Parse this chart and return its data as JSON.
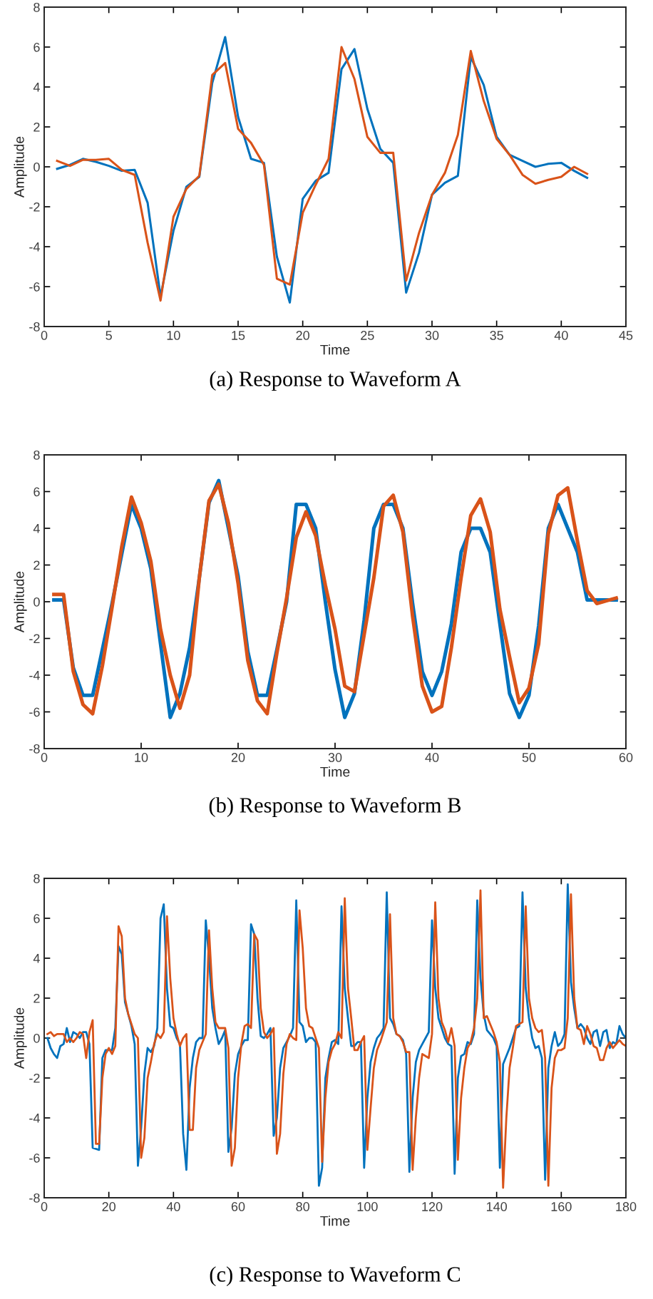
{
  "chart_data": [
    {
      "type": "line",
      "title": "(a) Response to Waveform A",
      "xlabel": "Time",
      "ylabel": "Amplitude",
      "xlim": [
        0,
        45
      ],
      "ylim": [
        -8,
        8
      ],
      "xticks": [
        0,
        5,
        10,
        15,
        20,
        25,
        30,
        35,
        40,
        45
      ],
      "yticks": [
        -8,
        -6,
        -4,
        -2,
        0,
        2,
        4,
        6,
        8
      ],
      "grid": false,
      "marker": "none",
      "line_style": "solid",
      "x": [
        1,
        2,
        3,
        4,
        5,
        6,
        7,
        8,
        9,
        10,
        11,
        12,
        13,
        14,
        15,
        16,
        17,
        18,
        19,
        20,
        21,
        22,
        23,
        24,
        25,
        26,
        27,
        28,
        29,
        30,
        31,
        32,
        33,
        34,
        35,
        36,
        37,
        38,
        39,
        40,
        41,
        42
      ],
      "series": [
        {
          "color": "#0072bd",
          "values": [
            -0.1,
            0.1,
            0.4,
            0.25,
            0.05,
            -0.2,
            -0.15,
            -1.8,
            -6.5,
            -3.2,
            -1.0,
            -0.5,
            4.2,
            6.5,
            2.5,
            0.4,
            0.2,
            -4.5,
            -6.8,
            -1.6,
            -0.7,
            -0.3,
            4.9,
            5.9,
            2.9,
            0.9,
            0.2,
            -6.3,
            -4.3,
            -1.4,
            -0.8,
            -0.45,
            5.5,
            4.1,
            1.5,
            0.6,
            0.3,
            0.0,
            0.15,
            0.2,
            -0.2,
            -0.55
          ]
        },
        {
          "color": "#d95319",
          "values": [
            0.3,
            0.05,
            0.35,
            0.35,
            0.4,
            -0.15,
            -0.4,
            -3.8,
            -6.7,
            -2.5,
            -1.1,
            -0.45,
            4.6,
            5.2,
            1.9,
            1.2,
            0.1,
            -5.6,
            -5.9,
            -2.3,
            -0.9,
            0.4,
            6.0,
            4.4,
            1.5,
            0.7,
            0.7,
            -5.7,
            -3.3,
            -1.4,
            -0.3,
            1.6,
            5.8,
            3.3,
            1.4,
            0.6,
            -0.4,
            -0.85,
            -0.65,
            -0.5,
            0.0,
            -0.35
          ]
        }
      ]
    },
    {
      "type": "line",
      "title": "(b) Response to Waveform B",
      "xlabel": "Time",
      "ylabel": "Amplitude",
      "xlim": [
        0,
        60
      ],
      "ylim": [
        -8,
        8
      ],
      "xticks": [
        0,
        10,
        20,
        30,
        40,
        50,
        60
      ],
      "yticks": [
        -8,
        -6,
        -4,
        -2,
        0,
        2,
        4,
        6,
        8
      ],
      "grid": false,
      "marker": "none",
      "line_style": "solid",
      "x": [
        1,
        2,
        3,
        4,
        5,
        6,
        7,
        8,
        9,
        10,
        11,
        12,
        13,
        14,
        15,
        16,
        17,
        18,
        19,
        20,
        21,
        22,
        23,
        24,
        25,
        26,
        27,
        28,
        29,
        30,
        31,
        32,
        33,
        34,
        35,
        36,
        37,
        38,
        39,
        40,
        41,
        42,
        43,
        44,
        45,
        46,
        47,
        48,
        49,
        50,
        51,
        52,
        53,
        54,
        55,
        56,
        57,
        58,
        59
      ],
      "series": [
        {
          "color": "#0072bd",
          "values": [
            0.1,
            0.1,
            -3.6,
            -5.1,
            -5.1,
            -2.6,
            -0.1,
            2.6,
            5.3,
            4.0,
            1.8,
            -2.3,
            -6.3,
            -5.0,
            -2.5,
            1.3,
            5.4,
            6.6,
            4.0,
            1.4,
            -2.7,
            -5.1,
            -5.1,
            -2.6,
            0.0,
            5.3,
            5.3,
            4.0,
            0.0,
            -3.7,
            -6.3,
            -5.0,
            -1.0,
            4.0,
            5.3,
            5.3,
            4.0,
            -0.1,
            -3.8,
            -5.1,
            -3.8,
            -1.2,
            2.7,
            4.0,
            4.0,
            2.7,
            -1.2,
            -5.0,
            -6.3,
            -5.1,
            -1.3,
            4.0,
            5.3,
            4.0,
            2.7,
            0.1,
            0.1,
            0.1,
            0.1
          ]
        },
        {
          "color": "#d95319",
          "values": [
            0.4,
            0.4,
            -3.8,
            -5.6,
            -6.1,
            -3.5,
            -0.3,
            3.0,
            5.7,
            4.3,
            2.2,
            -1.5,
            -4.0,
            -5.8,
            -4.0,
            1.3,
            5.5,
            6.4,
            4.3,
            1.0,
            -3.2,
            -5.4,
            -6.1,
            -2.8,
            0.2,
            3.5,
            4.9,
            3.6,
            0.9,
            -1.5,
            -4.6,
            -4.9,
            -1.8,
            1.3,
            5.2,
            5.8,
            3.8,
            -0.8,
            -4.6,
            -6.0,
            -5.7,
            -2.5,
            1.3,
            4.7,
            5.6,
            3.8,
            -0.4,
            -3.0,
            -5.5,
            -4.7,
            -2.3,
            3.7,
            5.8,
            6.2,
            3.3,
            0.6,
            -0.1,
            0.05,
            0.2
          ]
        }
      ]
    },
    {
      "type": "line",
      "title": "(c) Response to Waveform C",
      "xlabel": "Time",
      "ylabel": "Amplitude",
      "xlim": [
        0,
        180
      ],
      "ylim": [
        -8,
        8
      ],
      "xticks": [
        0,
        20,
        40,
        60,
        80,
        100,
        120,
        140,
        160,
        180
      ],
      "yticks": [
        -8,
        -6,
        -4,
        -2,
        0,
        2,
        4,
        6,
        8
      ],
      "grid": false,
      "marker": "none",
      "line_style": "solid",
      "series": [
        {
          "color": "#0072bd",
          "x": [
            1,
            2,
            3,
            4,
            5,
            6,
            7,
            8,
            9,
            10,
            11,
            12,
            13,
            14,
            15,
            17,
            18,
            19,
            21,
            22,
            23,
            24,
            25,
            26,
            27,
            28,
            29,
            30,
            31,
            32,
            33,
            34,
            35,
            36,
            37,
            38,
            39,
            40,
            41,
            42,
            43,
            44,
            45,
            46,
            47,
            48,
            49,
            50,
            51,
            52,
            53,
            54,
            55,
            56,
            57,
            58,
            59,
            60,
            61,
            62,
            63,
            64,
            65,
            66,
            67,
            68,
            69,
            70,
            71,
            72,
            73,
            74,
            75,
            76,
            77,
            78,
            79,
            80,
            81,
            82,
            83,
            84,
            85,
            86,
            87,
            88,
            89,
            90,
            91,
            92,
            93,
            94,
            95,
            96,
            97,
            98,
            99,
            100,
            101,
            102,
            103,
            104,
            105,
            106,
            107,
            108,
            109,
            110,
            111,
            112,
            113,
            114,
            115,
            116,
            117,
            118,
            119,
            120,
            121,
            122,
            123,
            124,
            125,
            126,
            127,
            128,
            129,
            130,
            131,
            132,
            133,
            134,
            135,
            136,
            137,
            138,
            139,
            140,
            141,
            142,
            143,
            144,
            145,
            146,
            147,
            148,
            149,
            150,
            151,
            152,
            153,
            154,
            155,
            156,
            157,
            158,
            159,
            160,
            161,
            162,
            163,
            164,
            165,
            166,
            167,
            168,
            169,
            170,
            171,
            172,
            173,
            174,
            175,
            176,
            177,
            178,
            179,
            180
          ],
          "values": [
            0.0,
            -0.5,
            -0.8,
            -1.0,
            -0.4,
            -0.3,
            0.5,
            -0.2,
            0.3,
            0.2,
            0.0,
            0.3,
            0.3,
            -0.3,
            -5.5,
            -5.6,
            -1.0,
            -0.6,
            -0.6,
            0.5,
            4.6,
            4.2,
            1.8,
            1.2,
            0.6,
            -0.3,
            -6.4,
            -4.5,
            -1.8,
            -0.5,
            -0.7,
            -0.4,
            0.5,
            6.0,
            6.7,
            2.5,
            0.6,
            0.5,
            0.0,
            -0.3,
            -4.8,
            -6.6,
            -2.5,
            -1.0,
            -0.2,
            0.0,
            0.0,
            5.9,
            4.0,
            1.5,
            0.5,
            -0.3,
            0.0,
            0.4,
            -5.7,
            -4.5,
            -1.8,
            -0.8,
            -0.4,
            -0.1,
            -0.1,
            5.7,
            5.2,
            2.0,
            0.1,
            0.0,
            0.2,
            0.5,
            -4.9,
            -4.0,
            -1.5,
            -0.5,
            -0.2,
            0.1,
            0.5,
            6.9,
            0.8,
            0.6,
            -0.2,
            0.0,
            0.0,
            -0.2,
            -7.4,
            -6.5,
            -2.0,
            -1.0,
            -0.2,
            -0.1,
            -0.3,
            6.6,
            2.5,
            1.0,
            -0.4,
            -0.4,
            -0.2,
            -0.2,
            -6.5,
            -3.0,
            -1.2,
            -0.5,
            0.0,
            0.2,
            0.5,
            7.3,
            1.0,
            0.7,
            0.2,
            0.1,
            -0.1,
            -0.8,
            -6.7,
            -3.0,
            -1.2,
            -0.6,
            -0.3,
            0.0,
            0.3,
            5.9,
            2.5,
            1.0,
            0.5,
            0.0,
            -0.3,
            -0.4,
            -6.8,
            -2.0,
            -0.9,
            -0.8,
            -0.2,
            -0.3,
            0.2,
            6.9,
            3.0,
            1.2,
            0.4,
            0.2,
            0.0,
            -0.4,
            -6.5,
            -1.3,
            -0.9,
            -0.5,
            0.0,
            0.5,
            0.6,
            7.3,
            2.5,
            1.0,
            0.0,
            -0.5,
            -0.4,
            -1.0,
            -7.1,
            -1.5,
            -0.4,
            0.3,
            -0.4,
            -0.2,
            0.2,
            7.7,
            2.8,
            1.5,
            0.5,
            0.7,
            0.5,
            0.0,
            -0.3,
            0.3,
            0.4,
            -0.4,
            0.3,
            0.4,
            -0.5,
            -0.2,
            -0.3,
            0.6,
            0.2,
            0.0
          ]
        },
        {
          "color": "#d95319",
          "x": [
            1,
            2,
            3,
            4,
            5,
            6,
            7,
            8,
            9,
            10,
            11,
            12,
            13,
            14,
            15,
            16,
            17,
            18,
            19,
            20,
            21,
            22,
            23,
            24,
            25,
            26,
            27,
            28,
            29,
            30,
            31,
            32,
            33,
            34,
            35,
            36,
            37,
            38,
            39,
            40,
            41,
            42,
            43,
            44,
            45,
            46,
            47,
            48,
            49,
            50,
            51,
            52,
            53,
            54,
            55,
            56,
            57,
            58,
            59,
            60,
            61,
            62,
            63,
            64,
            65,
            66,
            67,
            68,
            69,
            70,
            71,
            72,
            73,
            74,
            75,
            76,
            77,
            78,
            79,
            80,
            81,
            82,
            83,
            84,
            85,
            86,
            87,
            88,
            89,
            90,
            91,
            92,
            93,
            94,
            95,
            96,
            97,
            98,
            99,
            100,
            101,
            102,
            103,
            104,
            105,
            106,
            107,
            108,
            109,
            110,
            111,
            112,
            113,
            114,
            115,
            116,
            117,
            118,
            119,
            120,
            121,
            122,
            123,
            124,
            125,
            126,
            127,
            128,
            129,
            130,
            131,
            132,
            133,
            134,
            135,
            136,
            137,
            138,
            139,
            140,
            141,
            142,
            143,
            144,
            145,
            146,
            147,
            148,
            149,
            150,
            151,
            152,
            153,
            154,
            155,
            156,
            157,
            158,
            159,
            160,
            161,
            162,
            163,
            164,
            165,
            166,
            167,
            168,
            169,
            170,
            171,
            172,
            173,
            174,
            175,
            176,
            177,
            178,
            179,
            180
          ],
          "values": [
            0.2,
            0.3,
            0.1,
            0.2,
            0.2,
            0.2,
            -0.2,
            0.0,
            -0.2,
            0.0,
            0.3,
            0.2,
            -1.0,
            0.3,
            0.9,
            -5.3,
            -5.3,
            -2.0,
            -0.8,
            -0.5,
            -0.8,
            -0.4,
            5.6,
            5.1,
            2.0,
            1.2,
            0.7,
            0.2,
            0.0,
            -6.0,
            -5.0,
            -2.0,
            -1.2,
            -0.3,
            0.2,
            0.0,
            0.3,
            6.1,
            3.0,
            1.0,
            0.2,
            -0.4,
            0.0,
            0.2,
            -4.6,
            -4.6,
            -1.5,
            -0.6,
            -0.2,
            0.2,
            5.4,
            2.5,
            0.8,
            0.5,
            0.5,
            0.5,
            -0.5,
            -6.4,
            -5.5,
            -2.0,
            -0.3,
            0.6,
            0.7,
            0.5,
            5.2,
            4.9,
            1.5,
            0.3,
            0.0,
            0.2,
            0.5,
            -5.8,
            -4.8,
            -1.8,
            -0.3,
            0.2,
            0.0,
            -0.1,
            6.4,
            4.5,
            1.5,
            0.6,
            0.5,
            0.0,
            -0.5,
            -6.2,
            -3.0,
            -1.2,
            -0.6,
            -0.3,
            0.3,
            0.0,
            7.0,
            2.5,
            1.0,
            -0.6,
            -0.6,
            -0.2,
            0.1,
            -5.6,
            -3.5,
            -1.5,
            -0.6,
            -0.2,
            0.3,
            0.8,
            6.2,
            1.0,
            0.2,
            0.1,
            -0.2,
            -0.7,
            -0.7,
            -6.6,
            -4.0,
            -2.0,
            -0.8,
            -0.9,
            -1.0,
            0.2,
            6.8,
            2.0,
            0.8,
            0.4,
            -0.2,
            0.5,
            -0.4,
            -6.1,
            -3.0,
            -1.5,
            -0.5,
            -0.2,
            0.5,
            2.0,
            7.4,
            1.0,
            1.1,
            0.7,
            0.3,
            -0.2,
            -1.2,
            -7.5,
            -4.0,
            -1.5,
            -0.5,
            0.6,
            0.7,
            0.8,
            6.6,
            2.0,
            1.0,
            0.5,
            0.3,
            0.4,
            -1.0,
            -7.4,
            -2.5,
            -1.0,
            -0.6,
            -0.6,
            -0.5,
            1.0,
            7.2,
            2.0,
            0.5,
            0.4,
            -0.3,
            0.6,
            0.2,
            -0.4,
            -0.5,
            -1.1,
            -1.1,
            -0.5,
            -0.2,
            -0.5,
            -0.3,
            -0.1,
            -0.3,
            -0.4
          ]
        }
      ]
    }
  ]
}
